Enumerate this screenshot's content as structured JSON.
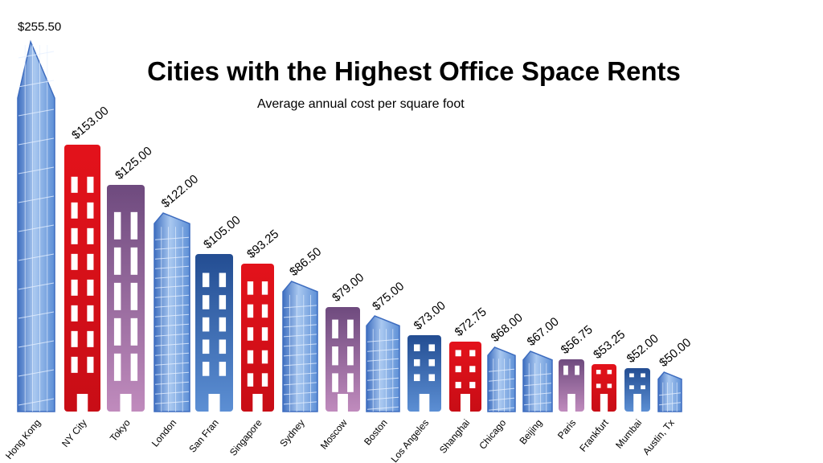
{
  "chart_data": {
    "type": "bar",
    "title": "Cities with the Highest Office Space Rents",
    "subtitle": "Average annual cost per square foot",
    "categories": [
      "Hong Kong",
      "NY City",
      "Tokyo",
      "London",
      "San Fran",
      "Singapore",
      "Sydney",
      "Moscow",
      "Boston",
      "Los Angeles",
      "Shanghai",
      "Chicago",
      "Beijing",
      "Paris",
      "Frankfurt",
      "Mumbai",
      "Austin, Tx"
    ],
    "values": [
      255.5,
      153.0,
      125.0,
      122.0,
      105.0,
      93.25,
      86.5,
      79.0,
      75.0,
      73.0,
      72.75,
      68.0,
      67.0,
      56.75,
      53.25,
      52.0,
      50.0
    ],
    "value_labels": [
      "$255.50",
      "$153.00",
      "$125.00",
      "$122.00",
      "$105.00",
      "$93.25",
      "$86.50",
      "$79.00",
      "$75.00",
      "$73.00",
      "$72.75",
      "$68.00",
      "$67.00",
      "$56.75",
      "$53.25",
      "$52.00",
      "$50.00"
    ],
    "bar_styles": [
      "glass",
      "red",
      "purple",
      "glass",
      "darkblue",
      "red",
      "glass",
      "purple",
      "glass",
      "darkblue",
      "red",
      "glass",
      "glass",
      "purple",
      "red",
      "darkblue",
      "glass"
    ],
    "colors": {
      "glass": "#6f9fdc",
      "red": "#e3121b",
      "purple": "#7a4f86",
      "darkblue": "#2a5aa0"
    },
    "xlabel": "",
    "ylabel": "",
    "grid": false,
    "legend": "none"
  }
}
